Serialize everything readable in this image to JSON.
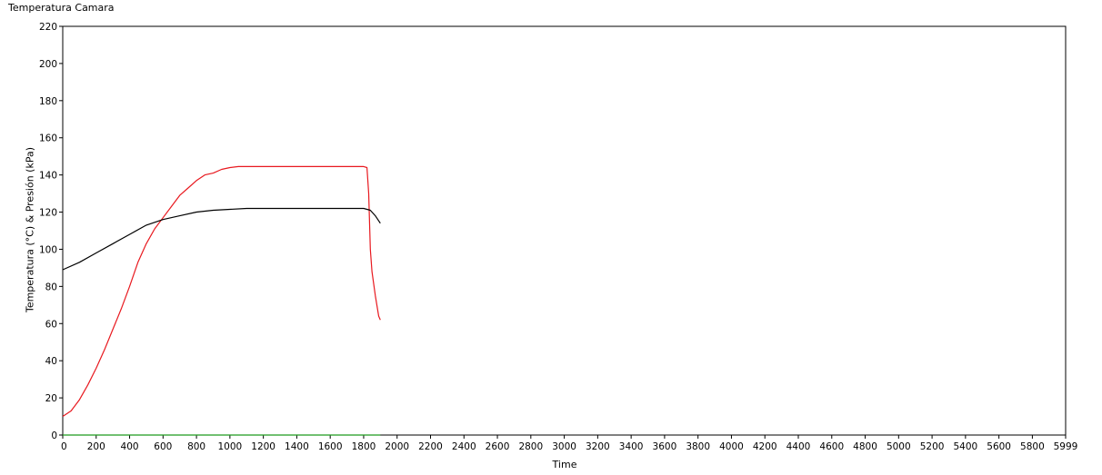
{
  "chart_data": {
    "type": "line",
    "title": "Temperatura Camara",
    "xlabel": "Time",
    "ylabel": "Temperatura (°C) & Presión (kPa)",
    "xlim": [
      0,
      5999
    ],
    "ylim": [
      0,
      220
    ],
    "x_ticks": [
      0,
      200,
      400,
      600,
      800,
      1000,
      1200,
      1400,
      1600,
      1800,
      2000,
      2200,
      2400,
      2600,
      2800,
      3000,
      3200,
      3400,
      3600,
      3800,
      4000,
      4200,
      4400,
      4600,
      4800,
      5000,
      5200,
      5400,
      5600,
      5800,
      5999
    ],
    "y_ticks": [
      0,
      20,
      40,
      60,
      80,
      100,
      120,
      140,
      160,
      180,
      200,
      220
    ],
    "grid": false,
    "series": [
      {
        "color": "#e8191f",
        "x": [
          0,
          50,
          100,
          150,
          200,
          250,
          300,
          350,
          400,
          450,
          500,
          550,
          600,
          650,
          700,
          750,
          800,
          850,
          900,
          950,
          1000,
          1050,
          1100,
          1200,
          1400,
          1600,
          1800,
          1820,
          1830,
          1840,
          1850,
          1870,
          1890,
          1900
        ],
        "y": [
          10,
          13,
          19,
          27,
          36,
          46,
          57,
          68,
          80,
          93,
          103,
          111,
          117,
          123,
          129,
          133,
          137,
          140,
          141,
          143,
          144,
          144.5,
          144.5,
          144.5,
          144.5,
          144.5,
          144.5,
          144,
          130,
          100,
          88,
          75,
          64,
          62
        ]
      },
      {
        "color": "#000000",
        "x": [
          0,
          100,
          200,
          300,
          400,
          500,
          600,
          700,
          800,
          900,
          1000,
          1100,
          1200,
          1400,
          1600,
          1800,
          1840,
          1870,
          1900
        ],
        "y": [
          89,
          93,
          98,
          103,
          108,
          113,
          116,
          118,
          120,
          121,
          121.5,
          122,
          122,
          122,
          122,
          122,
          121,
          118,
          114
        ]
      },
      {
        "color": "#1e9a1e",
        "x": [
          0,
          1900
        ],
        "y": [
          0,
          0
        ]
      }
    ]
  }
}
